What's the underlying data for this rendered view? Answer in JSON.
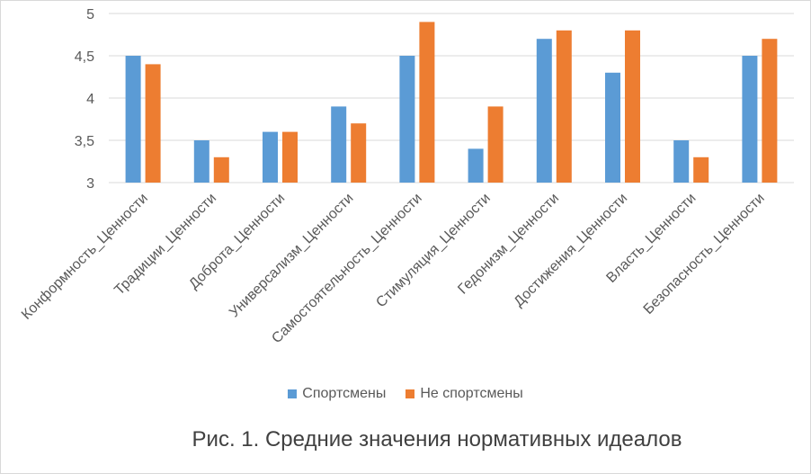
{
  "chart_data": {
    "type": "bar",
    "categories": [
      "Конформность_Ценности",
      "Традиции_Ценности",
      "Доброта_Ценности",
      "Универсализм_Ценности",
      "Самостоятельность_Ценности",
      "Стимуляция_Ценности",
      "Гедонизм_Ценности",
      "Достижения_Ценности",
      "Власть_Ценности",
      "Безопасность_Ценности"
    ],
    "series": [
      {
        "name": "Спортсмены",
        "color": "#5b9bd5",
        "values": [
          4.5,
          3.5,
          3.6,
          3.9,
          4.5,
          3.4,
          4.7,
          4.3,
          3.5,
          4.5
        ]
      },
      {
        "name": "Не спортсмены",
        "color": "#ed7d31",
        "values": [
          4.4,
          3.3,
          3.6,
          3.7,
          4.9,
          3.9,
          4.8,
          4.8,
          3.3,
          4.7
        ]
      }
    ],
    "ylim": [
      3,
      5
    ],
    "yticks": [
      "3",
      "3,5",
      "4",
      "4,5",
      "5"
    ],
    "grid": true,
    "legend_position": "bottom",
    "title": ""
  },
  "caption": "Рис. 1. Средние значения нормативных идеалов",
  "colors": {
    "gridline": "#d9d9d9",
    "axis_text": "#595959"
  }
}
